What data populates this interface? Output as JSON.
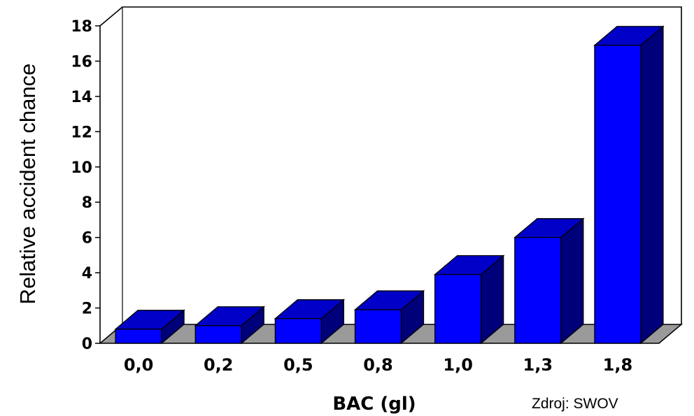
{
  "chart_data": {
    "type": "bar",
    "categories": [
      "0,0",
      "0,2",
      "0,5",
      "0,8",
      "1,0",
      "1,3",
      "1,8"
    ],
    "values": [
      0.8,
      1.0,
      1.4,
      1.9,
      3.9,
      6.0,
      16.9
    ],
    "xlabel": "BAC (gl)",
    "ylabel": "Relative accident chance",
    "ylim": [
      0,
      18
    ],
    "yticks": [
      "0",
      "2",
      "4",
      "6",
      "8",
      "10",
      "12",
      "14",
      "16",
      "18"
    ],
    "grid": false,
    "style": "3d",
    "colors": {
      "bar_front": "#0000ff",
      "bar_top": "#0000c8",
      "bar_side": "#00007a",
      "floor": "#9a9a9a"
    }
  },
  "source_note": "Zdroj: SWOV"
}
